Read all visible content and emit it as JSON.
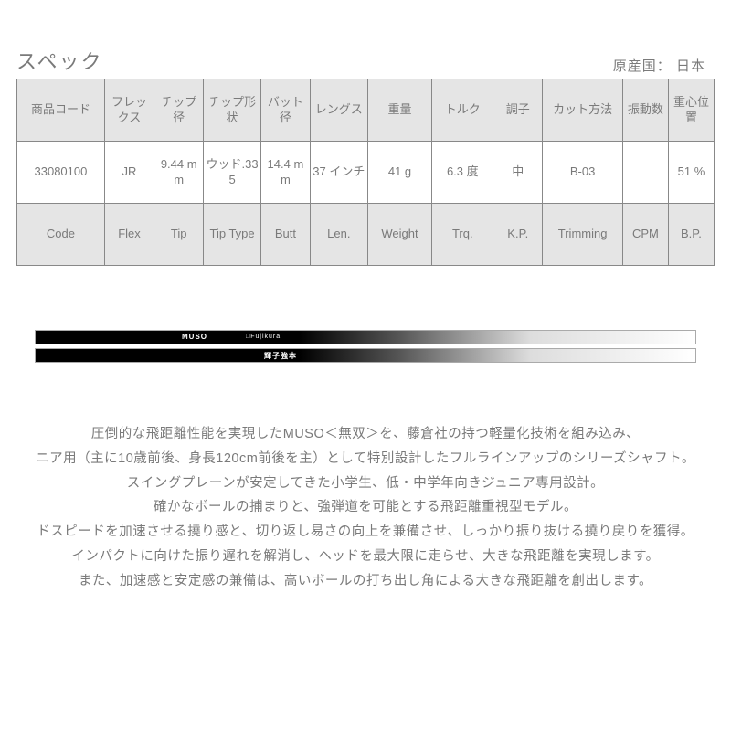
{
  "title": "スペック",
  "origin_label": "原産国：",
  "origin_value": "日本",
  "table": {
    "col_widths_pct": [
      11.5,
      6.5,
      6.5,
      7.5,
      6.5,
      7.5,
      8.5,
      8,
      6.5,
      10.5,
      6,
      6
    ],
    "header_bg": "#e5e5e5",
    "border_color": "#888888",
    "text_color": "#7a7a7a",
    "rows": [
      {
        "type": "hdr",
        "cells": [
          "商品コード",
          "フレックス",
          "チップ径",
          "チップ形状",
          "バット径",
          "レングス",
          "重量",
          "トルク",
          "調子",
          "カット方法",
          "振動数",
          "重心位置"
        ]
      },
      {
        "type": "data",
        "cells": [
          "33080100",
          "JR",
          "9.44 mm",
          "ウッド.335",
          "14.4 mm",
          "37 インチ",
          "41 g",
          "6.3 度",
          "中",
          "B-03",
          "",
          "51 %"
        ]
      },
      {
        "type": "hdr",
        "cells": [
          "Code",
          "Flex",
          "Tip",
          "Tip Type",
          "Butt",
          "Len.",
          "Weight",
          "Trq.",
          "K.P.",
          "Trimming",
          "CPM",
          "B.P."
        ]
      }
    ]
  },
  "shafts": [
    {
      "label1": "MUSO",
      "label2": "□Fujikura"
    },
    {
      "label1": "輝子強本",
      "label2": ""
    }
  ],
  "desc_lines": [
    "圧倒的な飛距離性能を実現したMUSO＜無双＞を、藤倉社の持つ軽量化技術を組み込み、",
    "ニア用（主に10歳前後、身長120cm前後を主）として特別設計したフルラインアップのシリーズシャフト。",
    "スイングプレーンが安定してきた小学生、低・中学年向きジュニア専用設計。",
    "確かなボールの捕まりと、強弾道を可能とする飛距離重視型モデル。",
    "ドスピードを加速させる撓り感と、切り返し易さの向上を兼備させ、しっかり振り抜ける撓り戻りを獲得。",
    "インパクトに向けた振り遅れを解消し、ヘッドを最大限に走らせ、大きな飛距離を実現します。",
    "また、加速感と安定感の兼備は、高いボールの打ち出し角による大きな飛距離を創出します。"
  ]
}
